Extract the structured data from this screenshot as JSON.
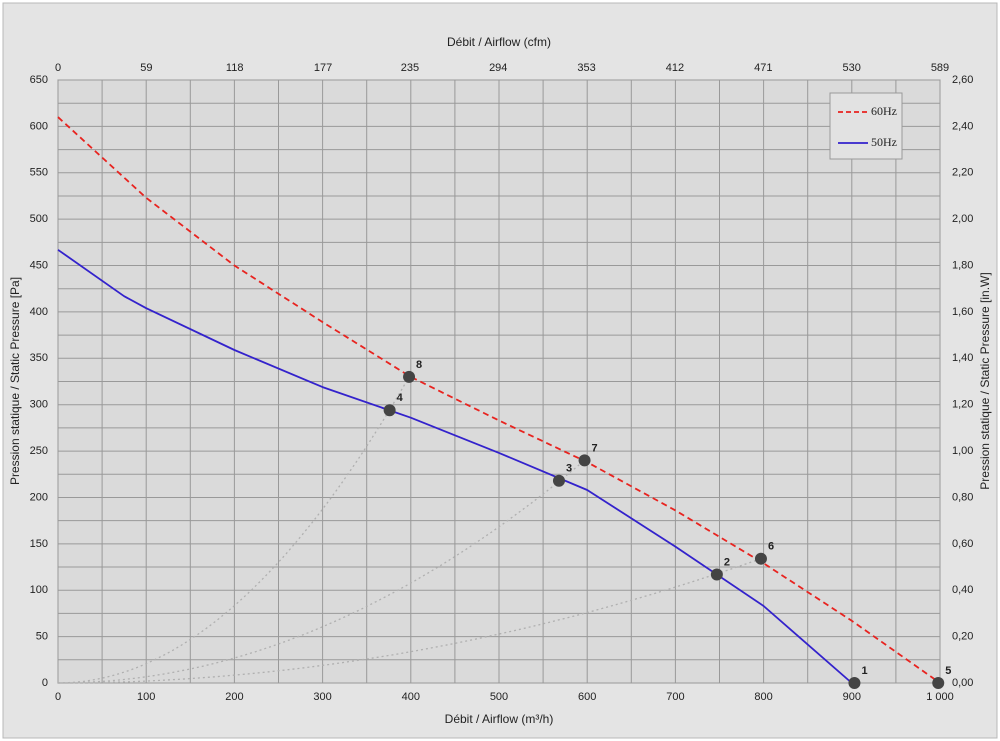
{
  "chart_data": {
    "type": "line",
    "x_title": "Débit / Airflow (m³/h)",
    "x2_title": "Débit / Airflow (cfm)",
    "y_title": "Pression statique / Static Pressure [Pa]",
    "y2_title": "Pression statique / Static Pressure [in.W]",
    "xlim": [
      0,
      1000
    ],
    "xticks": [
      0,
      100,
      200,
      300,
      400,
      500,
      600,
      700,
      800,
      900,
      {
        "value": 1000,
        "label": "1 000"
      }
    ],
    "x2lim": [
      0,
      589
    ],
    "x2ticks": [
      0,
      59,
      118,
      177,
      235,
      294,
      353,
      412,
      471,
      530,
      589
    ],
    "ylim": [
      0,
      650
    ],
    "yticks": [
      0,
      50,
      100,
      150,
      200,
      250,
      300,
      350,
      400,
      450,
      500,
      550,
      600,
      650
    ],
    "y2lim": [
      0,
      2.6
    ],
    "y2ticks": [
      {
        "value": 0,
        "label": "0,00"
      },
      {
        "value": 0.2,
        "label": "0,20"
      },
      {
        "value": 0.4,
        "label": "0,40"
      },
      {
        "value": 0.6,
        "label": "0,60"
      },
      {
        "value": 0.8,
        "label": "0,80"
      },
      {
        "value": 1.0,
        "label": "1,00"
      },
      {
        "value": 1.2,
        "label": "1,20"
      },
      {
        "value": 1.4,
        "label": "1,40"
      },
      {
        "value": 1.6,
        "label": "1,60"
      },
      {
        "value": 1.8,
        "label": "1,80"
      },
      {
        "value": 2.0,
        "label": "2,00"
      },
      {
        "value": 2.2,
        "label": "2,20"
      },
      {
        "value": 2.4,
        "label": "2,40"
      },
      {
        "value": 2.6,
        "label": "2,60"
      }
    ],
    "grid": true,
    "minor_grid": true,
    "legend": "top-right",
    "series": [
      {
        "name": "60Hz",
        "color": "#e8231f",
        "dashed": true,
        "x": [
          0,
          100,
          200,
          300,
          400,
          500,
          600,
          700,
          800,
          900,
          1000
        ],
        "values": [
          610,
          523,
          450,
          389,
          330,
          283,
          238,
          186,
          129,
          67,
          0
        ]
      },
      {
        "name": "50Hz",
        "color": "#3322cc",
        "dashed": false,
        "x": [
          0,
          75,
          100,
          200,
          300,
          400,
          500,
          600,
          700,
          800,
          900
        ],
        "values": [
          467,
          417,
          404,
          359,
          319,
          286,
          248,
          208,
          147,
          83,
          0
        ]
      }
    ],
    "points": [
      {
        "label": "1",
        "x": 903,
        "y": 0
      },
      {
        "label": "2",
        "x": 747,
        "y": 117
      },
      {
        "label": "3",
        "x": 568,
        "y": 218
      },
      {
        "label": "4",
        "x": 376,
        "y": 294
      },
      {
        "label": "5",
        "x": 998,
        "y": 0
      },
      {
        "label": "6",
        "x": 797,
        "y": 134
      },
      {
        "label": "7",
        "x": 597,
        "y": 240
      },
      {
        "label": "8",
        "x": 398,
        "y": 330
      }
    ],
    "point_color": "#444444",
    "system_curves": [
      [
        3,
        7
      ],
      [
        2,
        6
      ],
      [
        1,
        5
      ]
    ]
  }
}
